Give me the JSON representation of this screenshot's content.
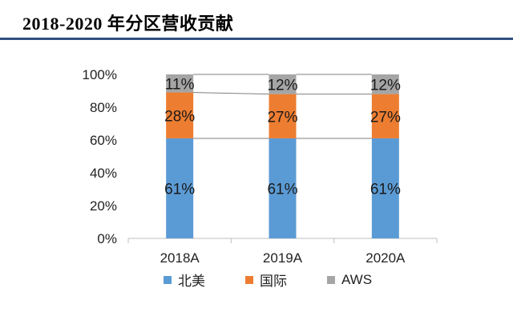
{
  "title": "2018-2020 年分区营收贡献",
  "chart_data": {
    "type": "bar",
    "stacked": true,
    "categories": [
      "2018A",
      "2019A",
      "2020A"
    ],
    "series": [
      {
        "name": "北美",
        "values": [
          61,
          61,
          61
        ],
        "labels": [
          "61%",
          "61%",
          "61%"
        ],
        "color": "#5b9bd5"
      },
      {
        "name": "国际",
        "values": [
          28,
          27,
          27
        ],
        "labels": [
          "28%",
          "27%",
          "27%"
        ],
        "color": "#ed7d31"
      },
      {
        "name": "AWS",
        "values": [
          11,
          12,
          12
        ],
        "labels": [
          "11%",
          "12%",
          "12%"
        ],
        "color": "#a5a5a5"
      }
    ],
    "y_ticks": [
      "0%",
      "20%",
      "40%",
      "60%",
      "80%",
      "100%"
    ],
    "ylim": [
      0,
      100
    ],
    "legend_position": "bottom",
    "series_lines": true
  }
}
